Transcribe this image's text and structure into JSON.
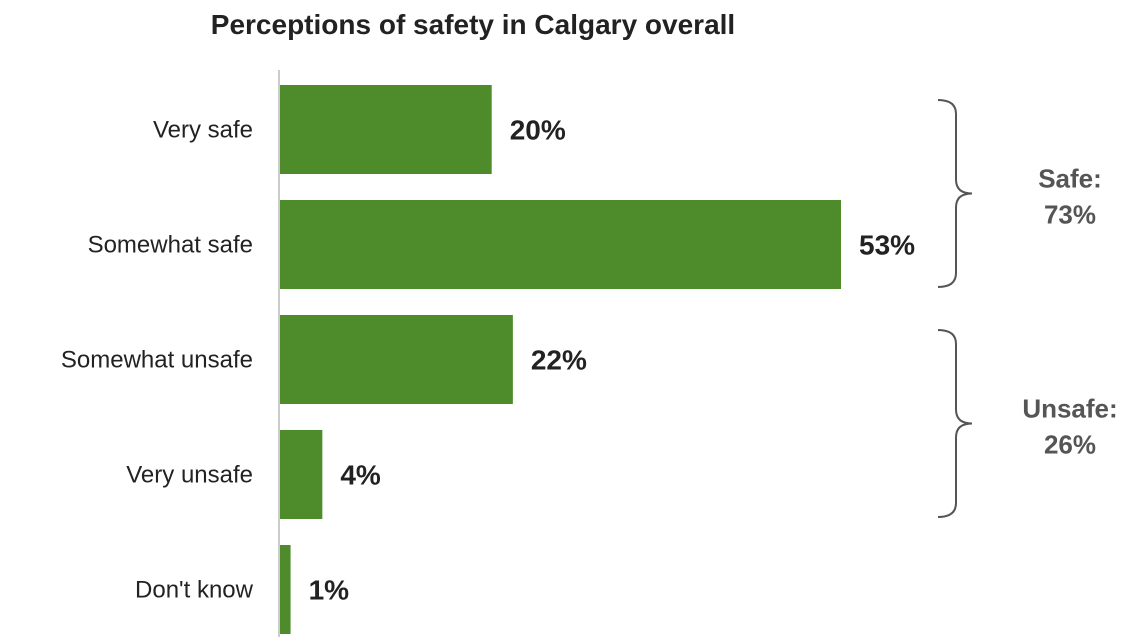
{
  "chart_data": {
    "type": "bar",
    "orientation": "horizontal",
    "title": "Perceptions of safety in Calgary overall",
    "categories": [
      "Very safe",
      "Somewhat safe",
      "Somewhat unsafe",
      "Very unsafe",
      "Don't know"
    ],
    "values": [
      20,
      53,
      22,
      4,
      1
    ],
    "value_labels": [
      "20%",
      "53%",
      "22%",
      "4%",
      "1%"
    ],
    "xlim": [
      0,
      53
    ],
    "grid": false,
    "legend": "none",
    "groups": [
      {
        "label_line1": "Safe:",
        "label_line2": "73%",
        "members": [
          "Very safe",
          "Somewhat safe"
        ]
      },
      {
        "label_line1": "Unsafe:",
        "label_line2": "26%",
        "members": [
          "Somewhat unsafe",
          "Very unsafe"
        ]
      }
    ],
    "colors": {
      "bar": "#4e8b2b",
      "axis": "#cccccc",
      "bracket": "#555555"
    }
  }
}
